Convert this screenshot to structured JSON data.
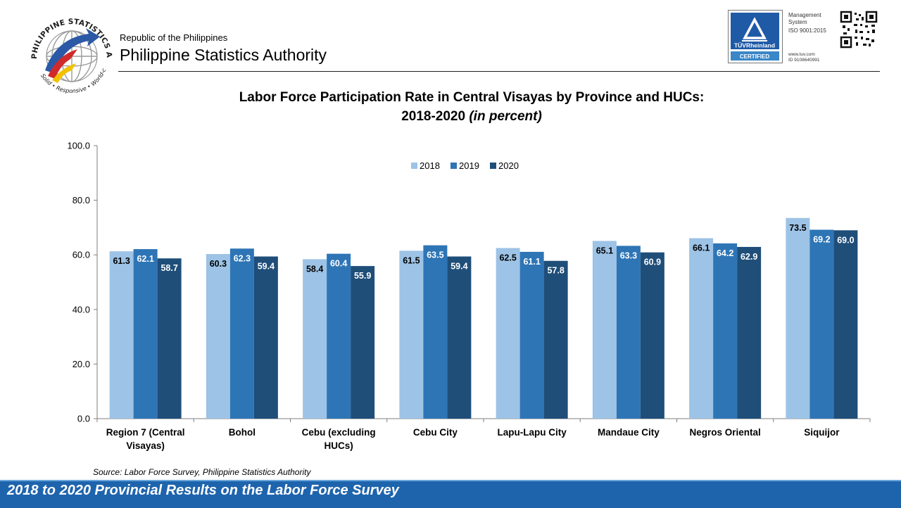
{
  "header": {
    "republic": "Republic of the Philippines",
    "agency": "Philippine Statistics Authority",
    "logo_text": "PHILIPPINE STATISTICS AUTHORITY",
    "logo_motto": "Solid • Responsive • World-class"
  },
  "certification": {
    "brand": "TÜVRheinland",
    "certified": "CERTIFIED",
    "system_line1": "Management",
    "system_line2": "System",
    "standard": "ISO 9001:2015",
    "website": "www.tuv.com",
    "id": "ID 9108640991"
  },
  "source_note": "Source: Labor Force Survey, Philippine Statistics Authority",
  "footer": "2018 to 2020 Provincial Results on the Labor Force Survey",
  "colors": {
    "series_2018": "#9dc3e6",
    "series_2019": "#2e75b6",
    "series_2020": "#1f4e79",
    "footer_bar": "#1e64ad"
  },
  "chart_data": {
    "type": "bar",
    "title_line1": "Labor Force Participation Rate in Central Visayas by Province and HUCs:",
    "title_line2": "2018-2020",
    "title_line2_italic": "(in percent)",
    "categories": [
      [
        "Region 7 (Central",
        "Visayas)"
      ],
      [
        "Bohol"
      ],
      [
        "Cebu (excluding",
        "HUCs)"
      ],
      [
        "Cebu City"
      ],
      [
        "Lapu-Lapu City"
      ],
      [
        "Mandaue City"
      ],
      [
        "Negros Oriental"
      ],
      [
        "Siquijor"
      ]
    ],
    "series": [
      {
        "name": "2018",
        "values": [
          61.3,
          60.3,
          58.4,
          61.5,
          62.5,
          65.1,
          66.1,
          73.5
        ]
      },
      {
        "name": "2019",
        "values": [
          62.1,
          62.3,
          60.4,
          63.5,
          61.1,
          63.3,
          64.2,
          69.2
        ]
      },
      {
        "name": "2020",
        "values": [
          58.7,
          59.4,
          55.9,
          59.4,
          57.8,
          60.9,
          62.9,
          69.0
        ]
      }
    ],
    "ylim": [
      0,
      100
    ],
    "y_ticks": [
      "0.0",
      "20.0",
      "40.0",
      "60.0",
      "80.0",
      "100.0"
    ],
    "grid": false,
    "legend_position": "top-center",
    "data_labels": true
  }
}
